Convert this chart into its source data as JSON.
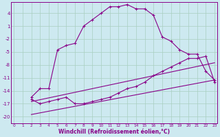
{
  "xlabel": "Windchill (Refroidissement éolien,°C)",
  "background_color": "#cde9f0",
  "grid_color": "#a8cfc0",
  "line_color": "#880088",
  "x_ticks": [
    0,
    1,
    2,
    3,
    4,
    5,
    6,
    7,
    8,
    9,
    10,
    11,
    12,
    13,
    14,
    15,
    16,
    17,
    18,
    19,
    20,
    21,
    22,
    23
  ],
  "y_ticks": [
    4,
    1,
    -2,
    -5,
    -8,
    -11,
    -14,
    -17,
    -20
  ],
  "ylim": [
    -21.5,
    6.5
  ],
  "xlim": [
    -0.3,
    23.3
  ],
  "curve1_x": [
    2,
    3,
    4,
    5,
    6,
    7,
    8,
    9,
    10,
    11,
    12,
    13,
    14,
    15,
    16,
    17,
    18,
    19,
    20,
    21,
    22,
    23
  ],
  "curve1_y": [
    -15.5,
    -13.5,
    -13.5,
    -4.5,
    -3.5,
    -3.0,
    1.0,
    2.5,
    4.0,
    5.5,
    5.5,
    6.0,
    5.0,
    5.0,
    3.5,
    -1.5,
    -2.5,
    -4.5,
    -5.5,
    -5.5,
    -9.5,
    -11.5
  ],
  "curve2_x": [
    2,
    3,
    4,
    5,
    6,
    7,
    8,
    9,
    10,
    11,
    12,
    13,
    14,
    15,
    16,
    17,
    18,
    19,
    20,
    21,
    22,
    23
  ],
  "curve2_y": [
    -16.0,
    -17.0,
    -16.5,
    -16.0,
    -15.5,
    -17.0,
    -17.0,
    -16.5,
    -16.0,
    -15.5,
    -14.5,
    -13.5,
    -13.0,
    -12.0,
    -10.5,
    -9.5,
    -8.5,
    -7.5,
    -6.5,
    -6.5,
    -6.0,
    -12.0
  ],
  "line1_x": [
    2,
    23
  ],
  "line1_y": [
    -16.5,
    -7.5
  ],
  "line2_x": [
    2,
    23
  ],
  "line2_y": [
    -19.5,
    -11.5
  ]
}
